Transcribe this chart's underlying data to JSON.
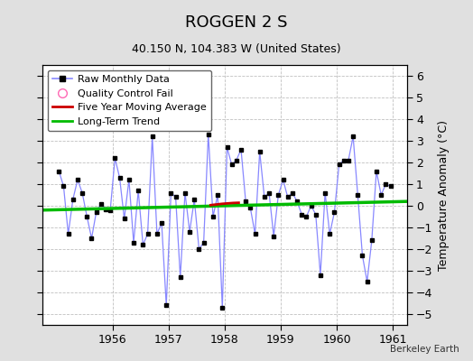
{
  "title": "ROGGEN 2 S",
  "subtitle": "40.150 N, 104.383 W (United States)",
  "ylabel": "Temperature Anomaly (°C)",
  "watermark": "Berkeley Earth",
  "xlim": [
    1954.75,
    1961.25
  ],
  "ylim": [
    -5.5,
    6.5
  ],
  "yticks": [
    -5,
    -4,
    -3,
    -2,
    -1,
    0,
    1,
    2,
    3,
    4,
    5,
    6
  ],
  "xticks": [
    1956,
    1957,
    1958,
    1959,
    1960,
    1961
  ],
  "bg_color": "#e0e0e0",
  "plot_bg_color": "#ffffff",
  "raw_x": [
    1955.042,
    1955.125,
    1955.208,
    1955.292,
    1955.375,
    1955.458,
    1955.542,
    1955.625,
    1955.708,
    1955.792,
    1955.875,
    1955.958,
    1956.042,
    1956.125,
    1956.208,
    1956.292,
    1956.375,
    1956.458,
    1956.542,
    1956.625,
    1956.708,
    1956.792,
    1956.875,
    1956.958,
    1957.042,
    1957.125,
    1957.208,
    1957.292,
    1957.375,
    1957.458,
    1957.542,
    1957.625,
    1957.708,
    1957.792,
    1957.875,
    1957.958,
    1958.042,
    1958.125,
    1958.208,
    1958.292,
    1958.375,
    1958.458,
    1958.542,
    1958.625,
    1958.708,
    1958.792,
    1958.875,
    1958.958,
    1959.042,
    1959.125,
    1959.208,
    1959.292,
    1959.375,
    1959.458,
    1959.542,
    1959.625,
    1959.708,
    1959.792,
    1959.875,
    1959.958,
    1960.042,
    1960.125,
    1960.208,
    1960.292,
    1960.375,
    1960.458,
    1960.542,
    1960.625,
    1960.708,
    1960.792,
    1960.875,
    1960.958
  ],
  "raw_y": [
    1.6,
    0.9,
    -1.3,
    0.3,
    1.2,
    0.6,
    -0.5,
    -1.5,
    -0.3,
    0.1,
    -0.15,
    -0.2,
    2.2,
    1.3,
    -0.6,
    1.2,
    -1.7,
    0.7,
    -1.8,
    -1.3,
    3.2,
    -1.3,
    -0.8,
    -4.6,
    0.6,
    0.4,
    -3.3,
    0.6,
    -1.2,
    0.3,
    -2.0,
    -1.7,
    3.3,
    -0.5,
    0.5,
    -4.7,
    2.7,
    1.9,
    2.1,
    2.6,
    0.2,
    -0.1,
    -1.3,
    2.5,
    0.4,
    0.6,
    -1.4,
    0.5,
    1.2,
    0.4,
    0.6,
    0.2,
    -0.4,
    -0.5,
    0.0,
    -0.4,
    -3.2,
    0.6,
    -1.3,
    -0.3,
    1.9,
    2.1,
    2.1,
    3.2,
    0.5,
    -2.3,
    -3.5,
    -1.6,
    1.6,
    0.5,
    1.0,
    0.9
  ],
  "moving_avg_x": [
    1957.75,
    1957.85,
    1957.95,
    1958.05,
    1958.15,
    1958.25
  ],
  "moving_avg_y": [
    0.03,
    0.06,
    0.09,
    0.11,
    0.13,
    0.14
  ],
  "trend_x": [
    1954.75,
    1961.25
  ],
  "trend_y": [
    -0.2,
    0.2
  ],
  "raw_line_color": "#8888ff",
  "moving_avg_color": "#cc0000",
  "trend_color": "#00bb00",
  "marker_color": "#000000",
  "title_fontsize": 13,
  "subtitle_fontsize": 9,
  "tick_fontsize": 9,
  "ylabel_fontsize": 9,
  "legend_fontsize": 8
}
